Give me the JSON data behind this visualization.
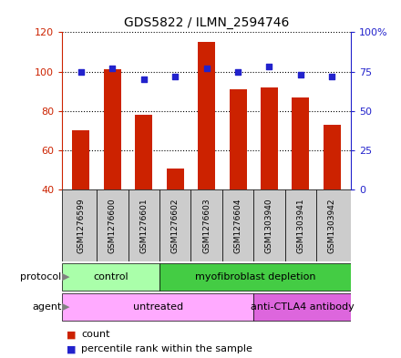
{
  "title": "GDS5822 / ILMN_2594746",
  "samples": [
    "GSM1276599",
    "GSM1276600",
    "GSM1276601",
    "GSM1276602",
    "GSM1276603",
    "GSM1276604",
    "GSM1303940",
    "GSM1303941",
    "GSM1303942"
  ],
  "counts": [
    70,
    101,
    78,
    51,
    115,
    91,
    92,
    87,
    73
  ],
  "percentiles": [
    75,
    77,
    70,
    72,
    77,
    75,
    78,
    73,
    72
  ],
  "bar_color": "#cc2200",
  "dot_color": "#2222cc",
  "ylim_left": [
    40,
    120
  ],
  "ylim_right": [
    0,
    100
  ],
  "yticks_left": [
    40,
    60,
    80,
    100,
    120
  ],
  "yticks_right": [
    0,
    25,
    50,
    75,
    100
  ],
  "protocol_groups": [
    {
      "label": "control",
      "start": 0,
      "end": 3,
      "color": "#aaffaa"
    },
    {
      "label": "myofibroblast depletion",
      "start": 3,
      "end": 9,
      "color": "#44cc44"
    }
  ],
  "agent_groups": [
    {
      "label": "untreated",
      "start": 0,
      "end": 6,
      "color": "#ffaaff"
    },
    {
      "label": "anti-CTLA4 antibody",
      "start": 6,
      "end": 9,
      "color": "#dd66dd"
    }
  ],
  "legend_count_label": "count",
  "legend_pct_label": "percentile rank within the sample",
  "bg_color": "#ffffff",
  "sample_box_color": "#cccccc",
  "bar_width": 0.55
}
